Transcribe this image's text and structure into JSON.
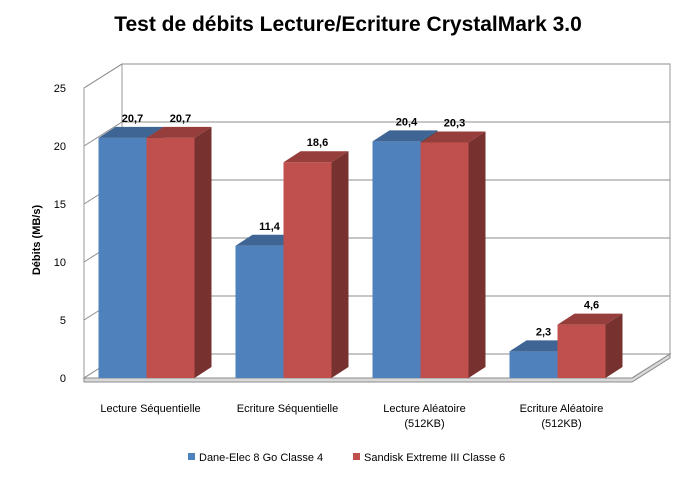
{
  "chart_data": {
    "type": "bar",
    "title": "Test de débits Lecture/Ecriture CrystalMark 3.0",
    "ylabel": "Débits (MB/s)",
    "xlabel": "",
    "ylim": [
      0,
      25
    ],
    "yticks": [
      0,
      5,
      10,
      15,
      20,
      25
    ],
    "grid": true,
    "legend_position": "bottom",
    "style": "3d-clustered-column",
    "categories": [
      [
        "Lecture Séquentielle"
      ],
      [
        "Ecriture Séquentielle"
      ],
      [
        "Lecture Aléatoire",
        "(512KB)"
      ],
      [
        "Ecriture Aléatoire",
        "(512KB)"
      ]
    ],
    "series": [
      {
        "name": "Dane-Elec 8 Go Classe 4",
        "color": "#4f81bd",
        "values": [
          20.7,
          11.4,
          20.4,
          2.3
        ],
        "labels": [
          "20,7",
          "11,4",
          "20,4",
          "2,3"
        ]
      },
      {
        "name": "Sandisk Extreme III Classe 6",
        "color": "#c0504d",
        "values": [
          20.7,
          18.6,
          20.3,
          4.6
        ],
        "labels": [
          "20,7",
          "18,6",
          "20,3",
          "4,6"
        ]
      }
    ]
  }
}
